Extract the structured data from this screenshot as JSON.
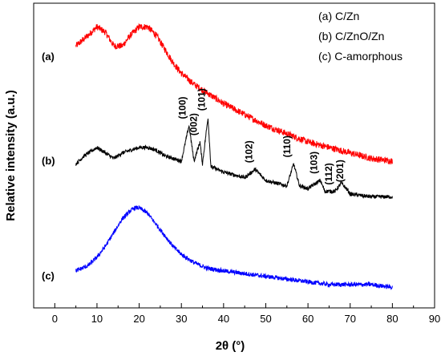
{
  "chart_data": {
    "type": "line",
    "title": "",
    "xlabel": "2θ (°)",
    "ylabel": "Relative intensity (a.u.)",
    "xlim": [
      -5,
      90
    ],
    "x_ticks": [
      0,
      10,
      20,
      30,
      40,
      50,
      60,
      70,
      80,
      90
    ],
    "y_ticks_shown": false,
    "grid": false,
    "legend": {
      "placement": "top-right",
      "entries": [
        "(a) C/Zn",
        "(b) C/ZnO/Zn",
        "(c) C-amorphous"
      ]
    },
    "series_tags": [
      "(a)",
      "(b)",
      "(c)"
    ],
    "colors": {
      "a": "#ff0000",
      "b": "#000000",
      "c": "#0000ff"
    },
    "series": [
      {
        "name": "(a) C/Zn",
        "x": [
          5,
          8,
          10,
          12,
          14,
          16,
          18,
          20,
          22,
          24,
          26,
          28,
          30,
          33,
          36,
          40,
          45,
          50,
          55,
          60,
          65,
          70,
          75,
          80
        ],
        "y": [
          0.92,
          0.96,
          0.99,
          0.97,
          0.92,
          0.92,
          0.96,
          0.99,
          0.99,
          0.96,
          0.91,
          0.86,
          0.82,
          0.78,
          0.75,
          0.71,
          0.67,
          0.63,
          0.6,
          0.57,
          0.55,
          0.53,
          0.51,
          0.5
        ]
      },
      {
        "name": "(b) C/ZnO/Zn",
        "x": [
          5,
          7,
          9,
          10,
          12,
          14,
          16,
          18,
          20,
          22,
          24,
          26,
          28,
          30,
          31.8,
          33,
          34.4,
          35,
          36.3,
          37,
          40,
          45,
          47.5,
          50,
          55,
          56.6,
          58,
          60,
          62.9,
          64,
          66.4,
          67.9,
          69.1,
          70,
          75,
          80
        ],
        "y": [
          0.49,
          0.52,
          0.54,
          0.55,
          0.53,
          0.51,
          0.53,
          0.54,
          0.55,
          0.55,
          0.54,
          0.52,
          0.51,
          0.5,
          0.63,
          0.5,
          0.57,
          0.49,
          0.66,
          0.48,
          0.46,
          0.44,
          0.47,
          0.43,
          0.41,
          0.49,
          0.41,
          0.4,
          0.43,
          0.39,
          0.39,
          0.42,
          0.4,
          0.38,
          0.37,
          0.37
        ]
      },
      {
        "name": "(c) C-amorphous",
        "x": [
          5,
          8,
          10,
          12,
          14,
          16,
          18,
          19,
          20,
          21,
          22,
          24,
          26,
          28,
          30,
          33,
          36,
          40,
          45,
          50,
          55,
          60,
          65,
          70,
          75,
          80
        ],
        "y": [
          0.1,
          0.12,
          0.15,
          0.19,
          0.24,
          0.29,
          0.32,
          0.33,
          0.33,
          0.32,
          0.31,
          0.27,
          0.23,
          0.19,
          0.16,
          0.13,
          0.11,
          0.1,
          0.09,
          0.08,
          0.07,
          0.06,
          0.05,
          0.05,
          0.05,
          0.04
        ]
      }
    ],
    "peak_labels": [
      {
        "label": "(100)",
        "x": 31.8
      },
      {
        "label": "(002)",
        "x": 34.4
      },
      {
        "label": "(101)",
        "x": 36.3
      },
      {
        "label": "(102)",
        "x": 47.5
      },
      {
        "label": "(110)",
        "x": 56.6
      },
      {
        "label": "(103)",
        "x": 62.9
      },
      {
        "label": "(112)",
        "x": 66.4
      },
      {
        "label": "(201)",
        "x": 69.1
      }
    ]
  }
}
